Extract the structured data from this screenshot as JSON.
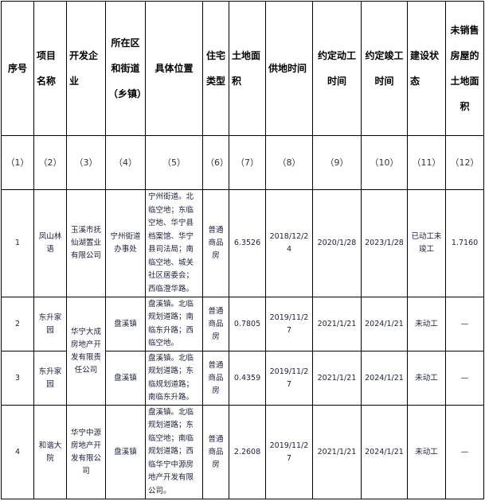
{
  "headers": [
    "序号",
    "项目名称",
    "开发企业",
    "所在区和街道（乡镇）",
    "具体位置",
    "住宅类型",
    "土地面积",
    "供地时间",
    "约定动工时间",
    "约定竣工时间",
    "建设状态",
    "未销售房屋的土地面积"
  ],
  "index_labels": [
    "（1）",
    "（2）",
    "（3）",
    "（4）",
    "（5）",
    "（6）",
    "（7）",
    "（8）",
    "（9）",
    "（10）",
    "（11）",
    "（12）"
  ],
  "rows": [
    {
      "no": "1",
      "project": "凤山林语",
      "developer": "玉溪市抚仙湖置业有限公司",
      "district": "宁州街道办事处",
      "location": "宁州街道。北临空地；东临空地、华宁县档案馆、华宁县司法局；南临空地、城关社区居委会；西临澄华路。",
      "type": "普通商品房",
      "area": "6.3526",
      "supply_date": "2018/12/24",
      "start_date": "2020/1/28",
      "finish_date": "2023/1/28",
      "status": "已动工未竣工",
      "unsold_area": "1.7160"
    },
    {
      "no": "2",
      "project": "东升家园",
      "developer": "华宁大成房地产开发有限责任公司",
      "district": "盘溪镇",
      "location": "盘溪镇。北临规划道路；南临东升路；西临空地。",
      "type": "普通商品房",
      "area": "0.7805",
      "supply_date": "2019/11/27",
      "start_date": "2021/1/21",
      "finish_date": "2024/1/21",
      "status": "未动工",
      "unsold_area": "—"
    },
    {
      "no": "3",
      "project": "东升家园",
      "district": "盘溪镇",
      "location": "盘溪镇。北临规划道路；东临规划道路；南临东升路。",
      "type": "普通商品房",
      "area": "0.4359",
      "supply_date": "2019/11/27",
      "start_date": "2021/1/21",
      "finish_date": "2024/1/21",
      "status": "未动工",
      "unsold_area": "—"
    },
    {
      "no": "4",
      "project": "和谐大院",
      "developer": "华宁中源房地产开发有限公司",
      "district": "盘溪镇",
      "location": "盘溪镇。北临规划道路；东临空地；南临规划道路；西临华宁中源房地产开发有限公司。",
      "type": "普通商品房",
      "area": "2.2608",
      "supply_date": "2019/11/27",
      "start_date": "2021/1/21",
      "finish_date": "2024/1/21",
      "status": "未动工",
      "unsold_area": "—"
    }
  ]
}
